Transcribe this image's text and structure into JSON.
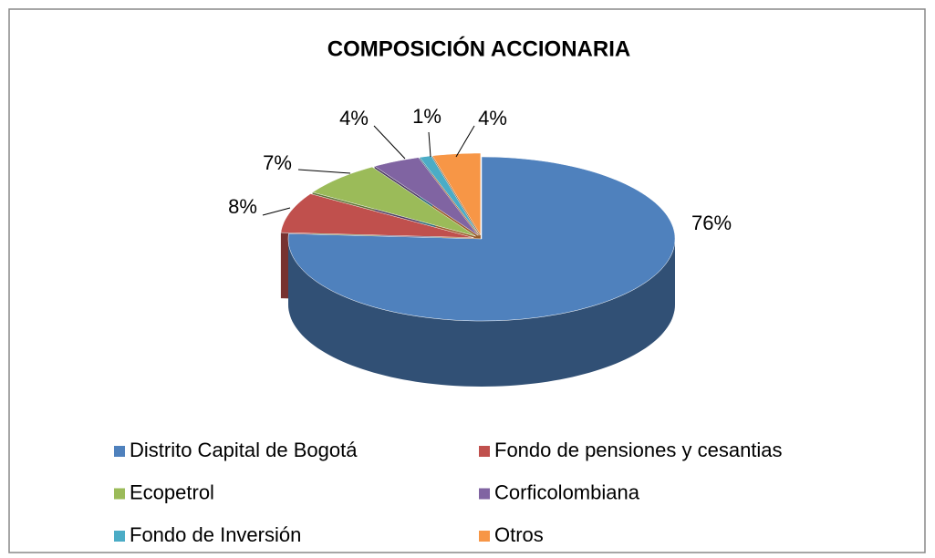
{
  "chart_data": {
    "type": "pie",
    "title": "COMPOSICIÓN ACCIONARIA",
    "categories": [
      "Distrito Capital de Bogotá",
      "Fondo de pensiones y cesantias",
      "Ecopetrol",
      "Corficolombiana",
      "Fondo de Inversión",
      "Otros"
    ],
    "values": [
      76,
      8,
      7,
      4,
      1,
      4
    ],
    "value_labels": [
      "76%",
      "8%",
      "7%",
      "4%",
      "1%",
      "4%"
    ],
    "colors": [
      "#4f81bd",
      "#c0504d",
      "#9bbb59",
      "#8064a2",
      "#4bacc6",
      "#f79646"
    ]
  }
}
